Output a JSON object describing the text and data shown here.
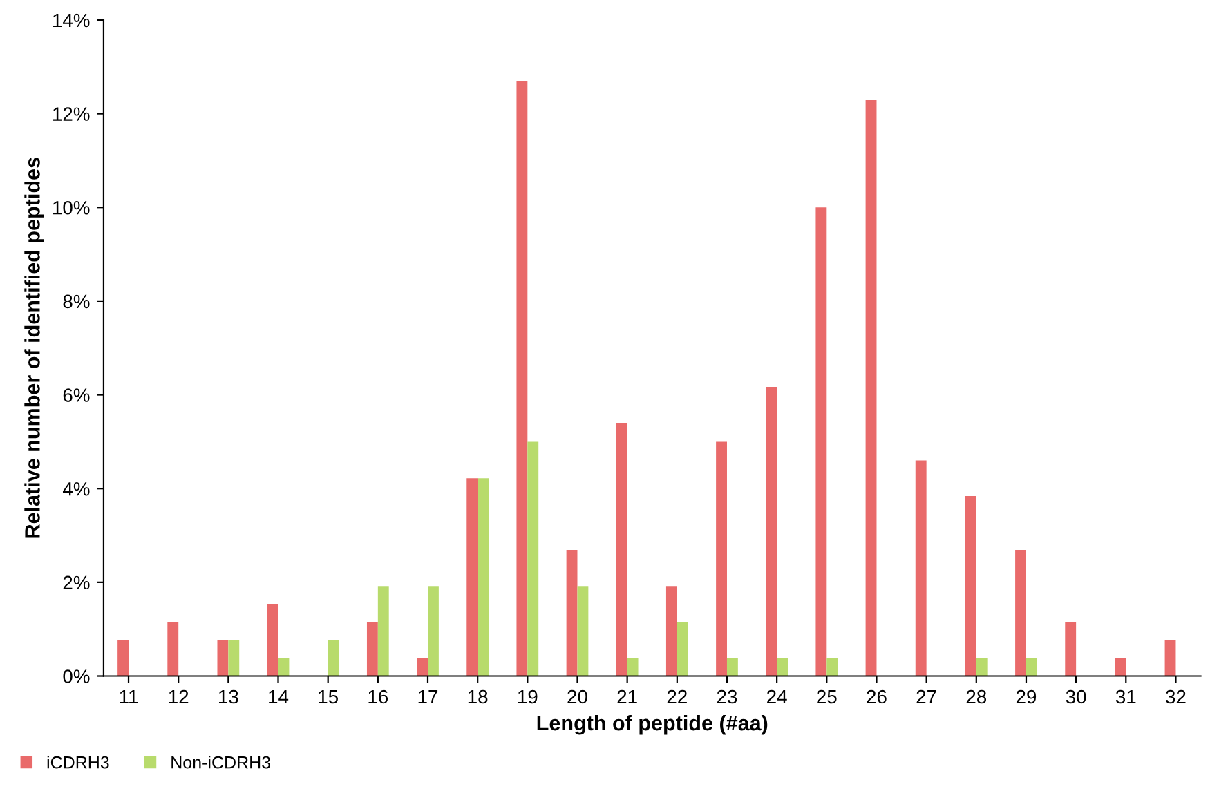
{
  "chart_data": {
    "type": "bar",
    "xlabel": "Length of peptide (#aa)",
    "ylabel": "Relative number of identified peptides",
    "categories": [
      "11",
      "12",
      "13",
      "14",
      "15",
      "16",
      "17",
      "18",
      "19",
      "20",
      "21",
      "22",
      "23",
      "24",
      "25",
      "26",
      "27",
      "28",
      "29",
      "30",
      "31",
      "32"
    ],
    "series": [
      {
        "name": "iCDRH3",
        "color": "#e96a6a",
        "values": [
          0.77,
          1.15,
          0.77,
          1.54,
          0,
          1.15,
          0.38,
          4.22,
          12.7,
          2.69,
          5.4,
          1.92,
          5.0,
          6.17,
          10.0,
          12.29,
          4.6,
          3.84,
          2.69,
          1.15,
          0.38,
          0.77
        ]
      },
      {
        "name": "Non-iCDRH3",
        "color": "#b8db6c",
        "values": [
          0,
          0,
          0.77,
          0.38,
          0.77,
          1.92,
          1.92,
          4.22,
          5.0,
          1.92,
          0.38,
          1.15,
          0.38,
          0.38,
          0.38,
          0,
          0,
          0.38,
          0.38,
          0,
          0,
          0
        ]
      }
    ],
    "ylim": [
      0,
      14
    ],
    "yticks": [
      {
        "value": 0,
        "label": "0%"
      },
      {
        "value": 2,
        "label": "2%"
      },
      {
        "value": 4,
        "label": "4%"
      },
      {
        "value": 6,
        "label": "6%"
      },
      {
        "value": 8,
        "label": "8%"
      },
      {
        "value": 10,
        "label": "10%"
      },
      {
        "value": 12,
        "label": "12%"
      },
      {
        "value": 14,
        "label": "14%"
      }
    ],
    "grid": false,
    "legend": "bottom left"
  }
}
